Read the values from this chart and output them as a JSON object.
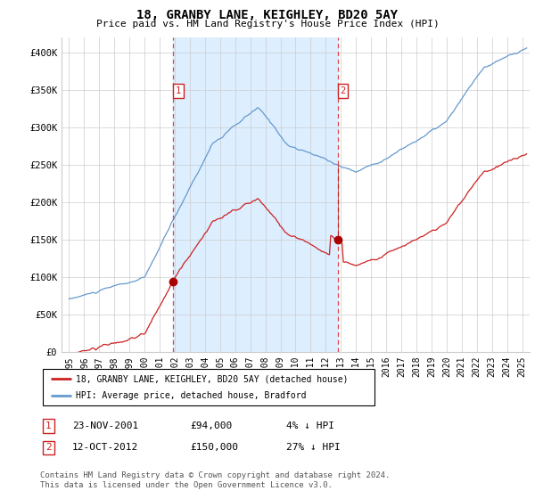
{
  "title": "18, GRANBY LANE, KEIGHLEY, BD20 5AY",
  "subtitle": "Price paid vs. HM Land Registry's House Price Index (HPI)",
  "ylim": [
    0,
    420000
  ],
  "yticks": [
    0,
    50000,
    100000,
    150000,
    200000,
    250000,
    300000,
    350000,
    400000
  ],
  "ytick_labels": [
    "£0",
    "£50K",
    "£100K",
    "£150K",
    "£200K",
    "£250K",
    "£300K",
    "£350K",
    "£400K"
  ],
  "hpi_color": "#6699cc",
  "price_color": "#cc2222",
  "marker_color": "#aa0000",
  "vline_color": "#dd4444",
  "shade_color": "#ddeeff",
  "grid_color": "#cccccc",
  "bg_color": "#ffffff",
  "purchase1_date": 2001.9,
  "purchase1_price": 94000,
  "purchase2_date": 2012.78,
  "purchase2_price": 150000,
  "legend1": "18, GRANBY LANE, KEIGHLEY, BD20 5AY (detached house)",
  "legend2": "HPI: Average price, detached house, Bradford",
  "footnote1": "Contains HM Land Registry data © Crown copyright and database right 2024.",
  "footnote2": "This data is licensed under the Open Government Licence v3.0.",
  "table": [
    {
      "num": "1",
      "date": "23-NOV-2001",
      "price": "£94,000",
      "hpi": "4% ↓ HPI"
    },
    {
      "num": "2",
      "date": "12-OCT-2012",
      "price": "£150,000",
      "hpi": "27% ↓ HPI"
    }
  ]
}
